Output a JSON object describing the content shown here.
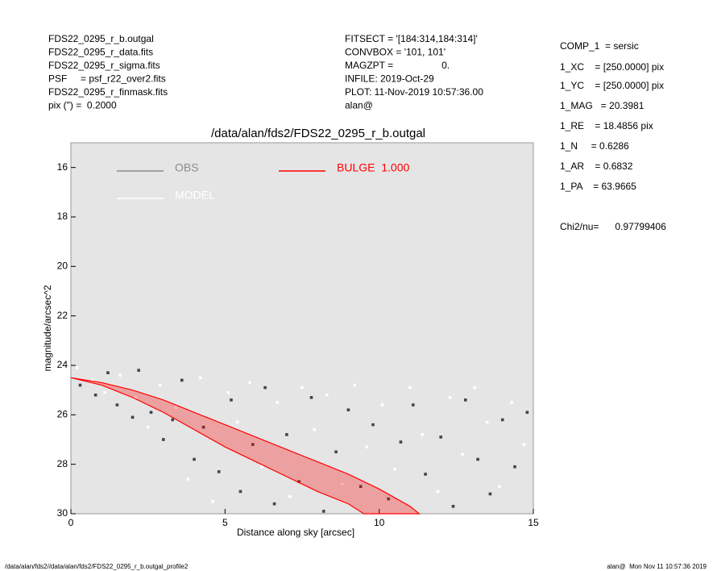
{
  "chart_data": {
    "type": "scatter",
    "title": "/data/alan/fds2/FDS22_0295_r_b.outgal",
    "x_label": "Distance along sky [arcsec]",
    "y_label": "magnitude/arcsec^2",
    "xlim": [
      0,
      15
    ],
    "ylim": [
      30,
      15
    ],
    "xticks": [
      0,
      5,
      10,
      15
    ],
    "yticks": [
      16,
      18,
      20,
      22,
      24,
      26,
      28,
      30
    ],
    "background": "#e5e5e5",
    "header_left": [
      "FDS22_0295_r_b.outgal",
      "FDS22_0295_r_data.fits",
      "FDS22_0295_r_sigma.fits",
      "PSF     = psf_r22_over2.fits",
      "FDS22_0295_r_finmask.fits",
      "pix (\") =  0.2000"
    ],
    "header_center": [
      "FITSECT = '[184:314,184:314]'",
      "CONVBOX = '101, 101'",
      "MAGZPT =                  0.",
      "INFILE: 2019-Oct-29",
      "PLOT: 11-Nov-2019 10:57:36.00",
      "alan@"
    ],
    "parameters": [
      "COMP_1  = sersic",
      "1_XC    = [250.0000] pix",
      "1_YC    = [250.0000] pix",
      "1_MAG   = 20.3981",
      "1_RE    = 18.4856 pix",
      "1_N     = 0.6286",
      "1_AR    = 0.6832",
      "1_PA    = 63.9665",
      "Chi2/nu=      0.97799406"
    ],
    "footer_left": "/data/alan/fds2//data/alan/fds2/FDS22_0295_r_b.outgal_profile2",
    "footer_right": "alan@  Mon Nov 11 10:57:36 2019",
    "series": [
      {
        "name": "OBS",
        "color": "#8c8c8c",
        "point_color": "#444444",
        "style": "points",
        "x": [
          0.3,
          0.8,
          1.2,
          1.5,
          2,
          2.2,
          2.6,
          3,
          3.3,
          3.6,
          4,
          4.3,
          4.8,
          5.2,
          5.5,
          5.9,
          6.3,
          6.6,
          7,
          7.4,
          7.8,
          8.2,
          8.6,
          9,
          9.4,
          9.8,
          10.3,
          10.7,
          11.1,
          11.5,
          12,
          12.4,
          12.8,
          13.2,
          13.6,
          14,
          14.4,
          14.8
        ],
        "values": [
          24.8,
          25.2,
          24.3,
          25.6,
          26.1,
          24.2,
          25.9,
          27,
          26.2,
          24.6,
          27.8,
          26.5,
          28.3,
          25.4,
          29.1,
          27.2,
          24.9,
          29.6,
          26.8,
          28.7,
          25.3,
          29.9,
          27.5,
          25.8,
          28.9,
          26.4,
          29.4,
          27.1,
          25.6,
          28.4,
          26.9,
          29.7,
          25.4,
          27.8,
          29.2,
          26.2,
          28.1,
          25.9
        ]
      },
      {
        "name": "MODEL",
        "color": "#ffffff",
        "style": "points",
        "x": [
          0.2,
          0.7,
          1.1,
          1.6,
          2.1,
          2.5,
          2.9,
          3.4,
          3.8,
          4.2,
          4.6,
          5.1,
          5.4,
          5.8,
          6.2,
          6.7,
          7.1,
          7.5,
          7.9,
          8.3,
          8.8,
          9.2,
          9.6,
          10.1,
          10.5,
          11,
          11.4,
          11.9,
          12.3,
          12.7,
          13.1,
          13.5,
          13.9,
          14.3,
          14.7
        ],
        "values": [
          24.1,
          24.6,
          25.1,
          24.4,
          25.3,
          26.5,
          24.8,
          25.7,
          28.6,
          24.5,
          29.5,
          25.1,
          26.3,
          24.7,
          28.1,
          25.5,
          29.3,
          24.9,
          26.6,
          25.2,
          28.8,
          24.8,
          27.3,
          25.6,
          28.2,
          24.9,
          26.8,
          29.1,
          25.3,
          27.6,
          24.9,
          26.3,
          28.9,
          25.5,
          27.2
        ]
      },
      {
        "name": "BULGE  1.000",
        "color": "#ff0000",
        "style": "area",
        "x": [
          0,
          1,
          2,
          3,
          4,
          5,
          6,
          7,
          8,
          9,
          10,
          11,
          11.3,
          9.5,
          9,
          8,
          7,
          6,
          5,
          4,
          3,
          2,
          1,
          0
        ],
        "values": [
          24.5,
          24.7,
          25.0,
          25.4,
          25.9,
          26.4,
          26.9,
          27.4,
          27.9,
          28.4,
          29.0,
          29.7,
          30,
          30,
          29.6,
          29.1,
          28.5,
          27.9,
          27.3,
          26.6,
          25.9,
          25.3,
          24.8,
          24.5
        ]
      }
    ]
  }
}
